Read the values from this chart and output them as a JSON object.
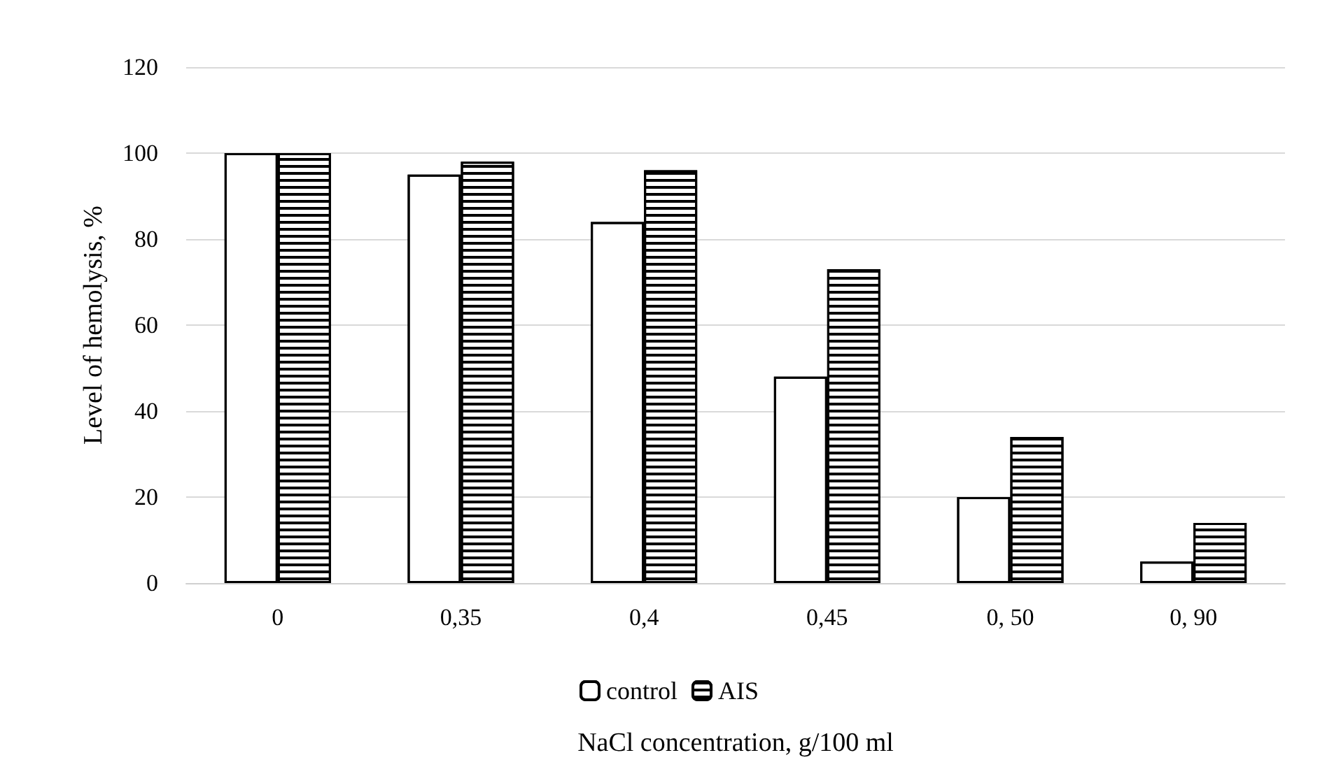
{
  "chart_data": {
    "type": "bar",
    "xlabel": "NaCl concentration, g/100 ml",
    "ylabel": "Level of hemolysis, %",
    "categories": [
      "0",
      "0,35",
      "0,4",
      "0,45",
      "0, 50",
      "0, 90"
    ],
    "series": [
      {
        "name": "control",
        "color": "#ffffff",
        "values": [
          100,
          95,
          84,
          48,
          20,
          5
        ]
      },
      {
        "name": "AIS",
        "color": "#ffffff",
        "values": [
          100,
          98,
          96,
          73,
          34,
          14
        ]
      }
    ],
    "ylim": [
      0,
      120
    ],
    "yticks": [
      0,
      20,
      40,
      60,
      80,
      100,
      120
    ],
    "grid": "y",
    "legend": "bottom"
  }
}
